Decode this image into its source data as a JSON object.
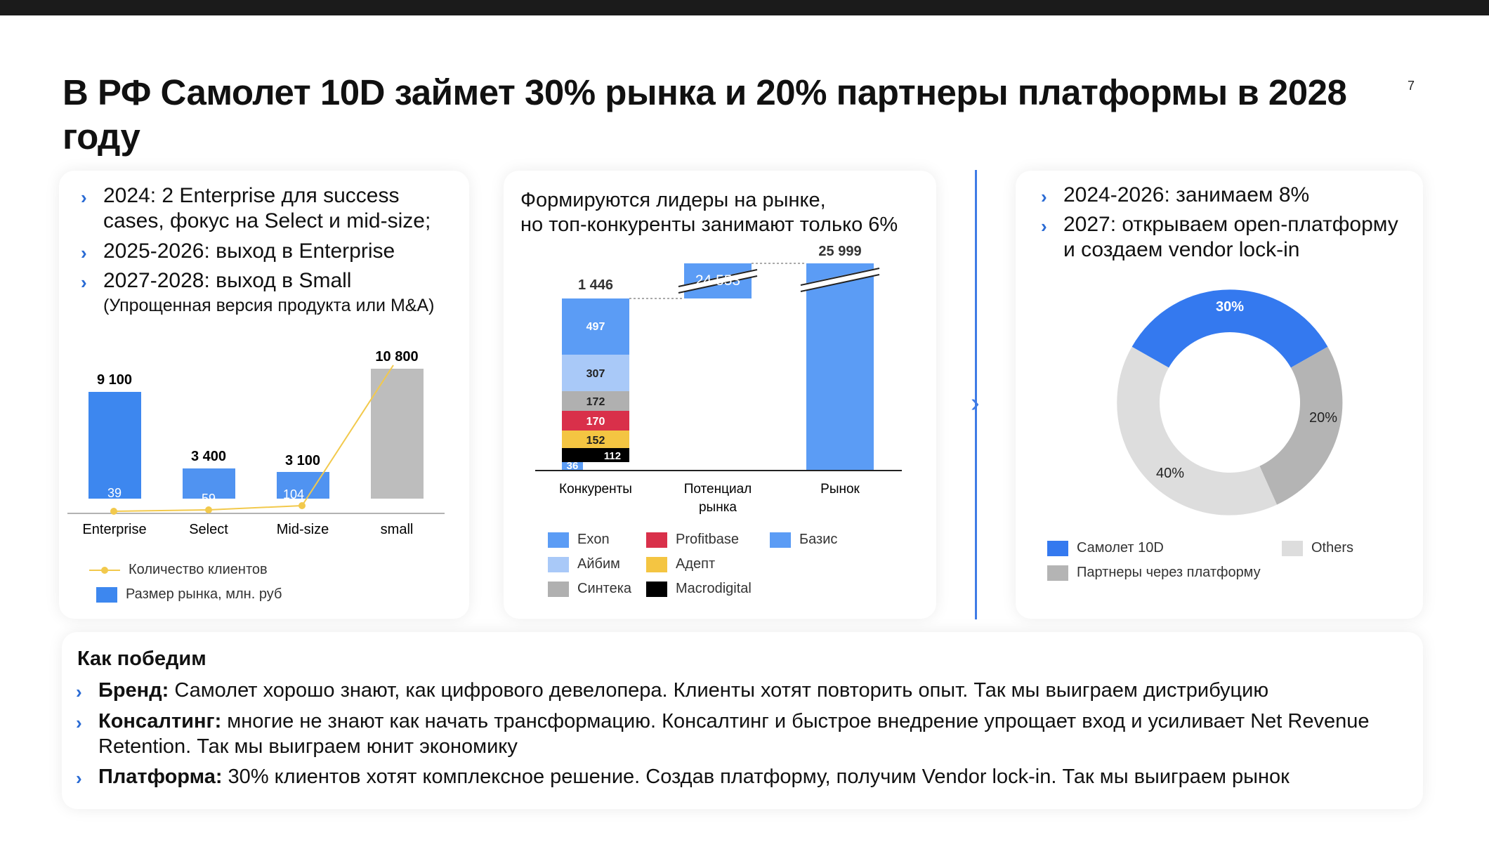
{
  "title": "В РФ Самолет 10D займет 30% рынка и 20% партнеры платформы в 2028 году",
  "page_number": "7",
  "left_card": {
    "bullets": [
      "2024: 2 Enterprise для success cases, фокус на Select и mid-size;",
      "2025-2026: выход в Enterprise",
      "2027-2028: выход в Small"
    ],
    "sub_note": "(Упрощенная версия продукта или M&A)",
    "legend_line": "Количество клиентов",
    "legend_bar": "Размер рынка, млн. руб"
  },
  "middle_card": {
    "heading_1": "Формируются лидеры на рынке,",
    "heading_2": "но топ-конкуренты занимают  только 6%",
    "legend": [
      "Exon",
      "Profitbase",
      "Базис",
      "Айбим",
      "Адепт",
      "Синтека",
      "Macrodigital"
    ]
  },
  "right_card": {
    "bullets": [
      "2024-2026: занимаем 8%",
      "2027: открываем open-платформу и создаем vendor lock-in"
    ],
    "legend": [
      "Самолет 10D",
      "Others",
      "Партнеры через платформу"
    ]
  },
  "bottom": {
    "title": "Как победим",
    "items": [
      {
        "bold": "Бренд:",
        "text": " Самолет хорошо знают, как цифрового девелопера. Клиенты хотят повторить опыт. Так мы выиграем дистрибуцию"
      },
      {
        "bold": "Консалтинг:",
        "text": " многие не знают как начать трансформацию. Консалтинг и быстрое внедрение упрощает вход и усиливает Net Revenue Retention. Так мы выиграем юнит экономику"
      },
      {
        "bold": "Платформа:",
        "text": " 30% клиентов хотят комплексное решение. Создав платформу, получим Vendor lock-in. Так мы выиграем рынок"
      }
    ]
  },
  "colors": {
    "blue": "#3d87ef",
    "gray": "#bdbdbd",
    "yellow": "#f2c94c",
    "accent": "#2a6bd4"
  },
  "chart_data": [
    {
      "type": "bar",
      "categories": [
        "Enterprise",
        "Select",
        "Mid-size",
        "small"
      ],
      "series": [
        {
          "name": "Размер рынка, млн. руб",
          "values": [
            9100,
            3400,
            3100,
            10800
          ],
          "labels": [
            "9 100",
            "3 400",
            "3 100",
            "10 800"
          ]
        },
        {
          "name": "Количество клиентов",
          "type": "line",
          "values": [
            39,
            59,
            104,
            null
          ],
          "labels": [
            "39",
            "59",
            "104",
            ""
          ]
        }
      ],
      "colors": [
        "#3d87ef",
        "#3d87ef",
        "#3d87ef",
        "#bdbdbd"
      ]
    },
    {
      "type": "bar",
      "categories": [
        "Конкуренты",
        "Потенциал рынка",
        "Рынок"
      ],
      "stack": [
        {
          "name": "Macrodigital",
          "value": 112,
          "color": "#000000"
        },
        {
          "name": "Базис",
          "value": 36,
          "color": "#5b9cf5"
        },
        {
          "name": "Адепт",
          "value": 152,
          "color": "#f4c542"
        },
        {
          "name": "Profitbase",
          "value": 170,
          "color": "#d9304a"
        },
        {
          "name": "Синтека",
          "value": 172,
          "color": "#b0b0b0"
        },
        {
          "name": "Айбим",
          "value": 307,
          "color": "#a9c9f8"
        },
        {
          "name": "Exon",
          "value": 497,
          "color": "#5b9cf5"
        }
      ],
      "totals": {
        "competitors": "1 446",
        "potential": "24 553",
        "market": "25 999"
      }
    },
    {
      "type": "pie",
      "labels": [
        "Самолет 10D",
        "Партнеры через платформу",
        "Others"
      ],
      "values": [
        30,
        20,
        40
      ],
      "value_labels": [
        "30%",
        "20%",
        "40%"
      ],
      "colors": [
        "#3479ef",
        "#b4b4b4",
        "#dddddd"
      ]
    }
  ]
}
